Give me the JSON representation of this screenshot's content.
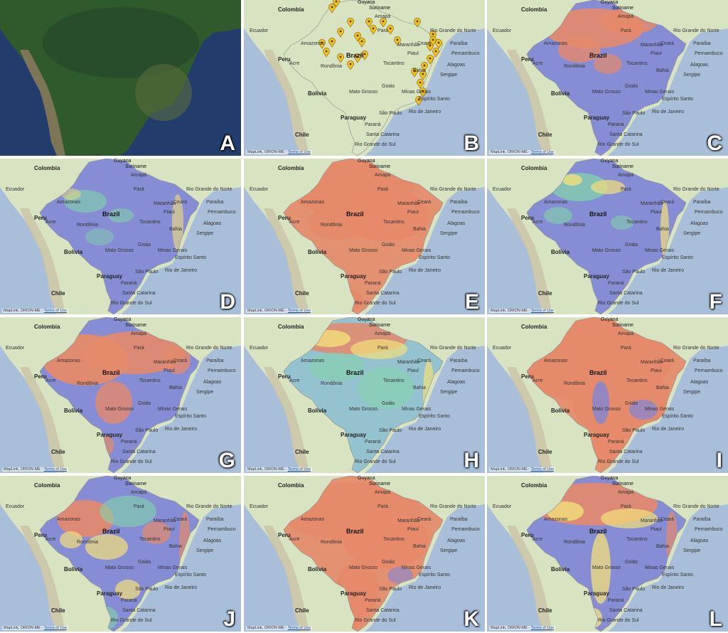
{
  "attribution": {
    "prefix_full": "MapLink, ORION-ME - ",
    "terms": "Terms of Use"
  },
  "panels": [
    {
      "id": "A",
      "letter": "A",
      "style": "satellite"
    },
    {
      "id": "B",
      "letter": "B",
      "style": "markers"
    },
    {
      "id": "C",
      "letter": "C",
      "style": "blue-orange-north"
    },
    {
      "id": "D",
      "letter": "D",
      "style": "blue-green"
    },
    {
      "id": "E",
      "letter": "E",
      "style": "orange-dominant"
    },
    {
      "id": "F",
      "letter": "F",
      "style": "blue-green-yellow"
    },
    {
      "id": "G",
      "letter": "G",
      "style": "orange-west"
    },
    {
      "id": "H",
      "letter": "H",
      "style": "heat-north"
    },
    {
      "id": "I",
      "letter": "I",
      "style": "orange-all"
    },
    {
      "id": "J",
      "letter": "J",
      "style": "mixed-heat"
    },
    {
      "id": "K",
      "letter": "K",
      "style": "orange-large"
    },
    {
      "id": "L",
      "letter": "L",
      "style": "orange-yellow-north"
    }
  ],
  "labels": {
    "brazil": "Brazil",
    "colombia": "Colombia",
    "ecuador": "Ecuador",
    "peru": "Peru",
    "bolivia": "Bolivia",
    "paraguay": "Paraguay",
    "chile": "Chile",
    "suriname": "Suriname",
    "guyana": "Guyana",
    "amazonas": "Amazonas",
    "para": "Pará",
    "amapa": "Amapá",
    "maranhao": "Maranhão",
    "piaui": "Piauí",
    "ceara": "Ceará",
    "rio_grande_do_norte": "Rio Grande do Norte",
    "paraiba": "Paraíba",
    "pernambuco": "Pernambuco",
    "alagoas": "Alagoas",
    "sergipe": "Sergipe",
    "bahia": "Bahia",
    "tocantins": "Tocantins",
    "goias": "Goiás",
    "mato_grosso": "Mato Grosso",
    "mato_grosso_do_sul": "Mato Grosso do Sul",
    "minas_gerais": "Minas Gerais",
    "espirito_santo": "Espírito Santo",
    "rio_de_janeiro": "Rio de Janeiro",
    "sao_paulo": "São Paulo",
    "parana": "Paraná",
    "santa_catarina": "Santa Catarina",
    "rio_grande_do_sul": "Rio Grande do Sul",
    "rondonia": "Rondônia",
    "acre": "Acre",
    "roraima": "Roraima"
  },
  "colors": {
    "ocean": "#a9bfd9",
    "land": "#d8e3c1",
    "mountain": "#c9c2a8",
    "blue": "#7f86d6",
    "orange": "#e58a6a",
    "green": "#82d6a8",
    "yellow": "#f2e07a",
    "marker": "#f3c31b"
  }
}
